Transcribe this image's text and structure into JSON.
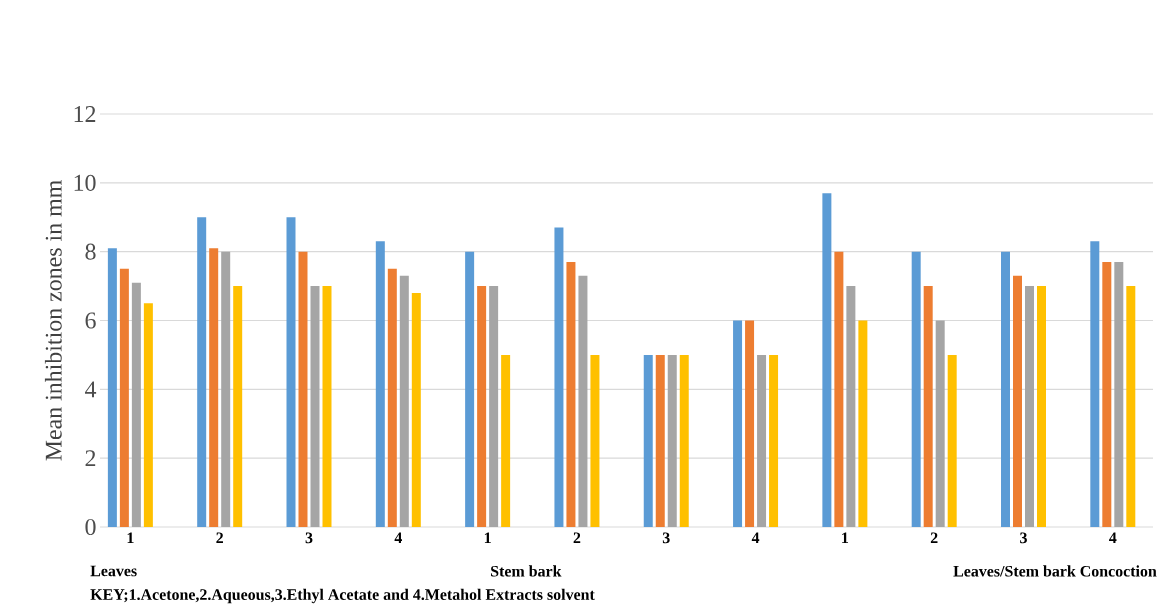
{
  "chart_data": {
    "type": "bar",
    "ylabel": "Mean inhibition zones in mm",
    "categories": [
      "1",
      "2",
      "3",
      "4",
      "1",
      "2",
      "3",
      "4",
      "1",
      "2",
      "3",
      "4"
    ],
    "series": [
      {
        "color": "#5b9bd5",
        "values": [
          8.1,
          9,
          9,
          8.3,
          8,
          8.7,
          5,
          6,
          9.7,
          8,
          8,
          8.3
        ]
      },
      {
        "color": "#ed7d31",
        "values": [
          7.5,
          8.1,
          8,
          7.5,
          7,
          7.7,
          5,
          6,
          8,
          7,
          7.3,
          7.7
        ]
      },
      {
        "color": "#a5a5a5",
        "values": [
          7.1,
          8,
          7,
          7.3,
          7,
          7.3,
          5,
          5,
          7,
          6,
          7,
          7.7
        ]
      },
      {
        "color": "#ffc000",
        "values": [
          6.5,
          7,
          7,
          6.8,
          5,
          5,
          5,
          5,
          6,
          5,
          7,
          7
        ]
      }
    ],
    "ylim": [
      0,
      12
    ],
    "yticks": [
      0,
      2,
      4,
      6,
      8,
      10,
      12
    ],
    "grid": "y",
    "annotations": [
      "Leaves",
      "Stem bark",
      "Leaves/Stem bark Concoction",
      "KEY;1.Acetone,2.Aqueous,3.Ethyl Acetate and 4.Metahol Extracts solvent"
    ]
  }
}
